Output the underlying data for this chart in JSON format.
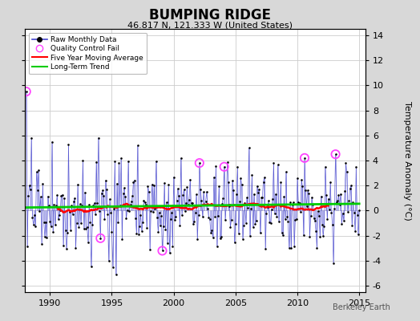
{
  "title": "BUMPING RIDGE",
  "subtitle": "46.817 N, 121.333 W (United States)",
  "ylabel": "Temperature Anomaly (°C)",
  "watermark": "Berkeley Earth",
  "xlim": [
    1988.0,
    2015.5
  ],
  "ylim": [
    -6.5,
    14.5
  ],
  "yticks": [
    -6,
    -4,
    -2,
    0,
    2,
    4,
    6,
    8,
    10,
    12,
    14
  ],
  "xticks": [
    1990,
    1995,
    2000,
    2005,
    2010,
    2015
  ],
  "fig_bg_color": "#d8d8d8",
  "plot_bg_color": "#ffffff",
  "raw_line_color": "#4444cc",
  "raw_dot_color": "#000000",
  "moving_avg_color": "#ff0000",
  "trend_color": "#00cc00",
  "qc_fail_color": "#ff44ff",
  "grid_color": "#cccccc",
  "seed": 17,
  "n_points": 324,
  "start_year": 1988.0833,
  "trend_value": 0.3
}
